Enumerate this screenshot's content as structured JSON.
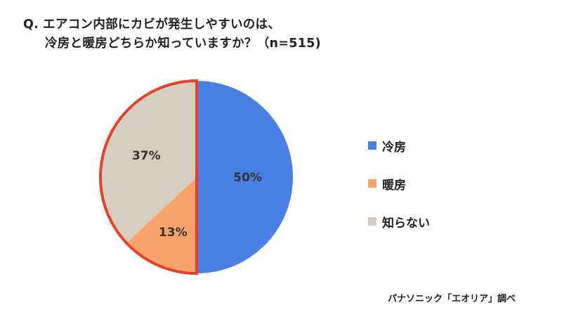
{
  "question": {
    "prefix": "Q.",
    "line1": "エアコン内部にカビが発生しやすいのは、",
    "line2": "冷房と暖房どちらか知っていますか？（n=515)"
  },
  "chart_data": {
    "type": "pie",
    "categories": [
      "冷房",
      "暖房",
      "知らない"
    ],
    "values": [
      50,
      13,
      37
    ],
    "labels": [
      "50%",
      "13%",
      "37%"
    ],
    "colors": [
      "#4a7fe3",
      "#f9a36b",
      "#d6cdc1"
    ],
    "highlight_border_color": "#e5412a",
    "highlighted_categories": [
      "暖房",
      "知らない"
    ],
    "legend_position": "right"
  },
  "legend": {
    "items": [
      {
        "label": "冷房",
        "color": "#4a7fe3"
      },
      {
        "label": "暖房",
        "color": "#f9a36b"
      },
      {
        "label": "知らない",
        "color": "#d6cdc1"
      }
    ]
  },
  "source": "パナソニック「エオリア」調べ"
}
